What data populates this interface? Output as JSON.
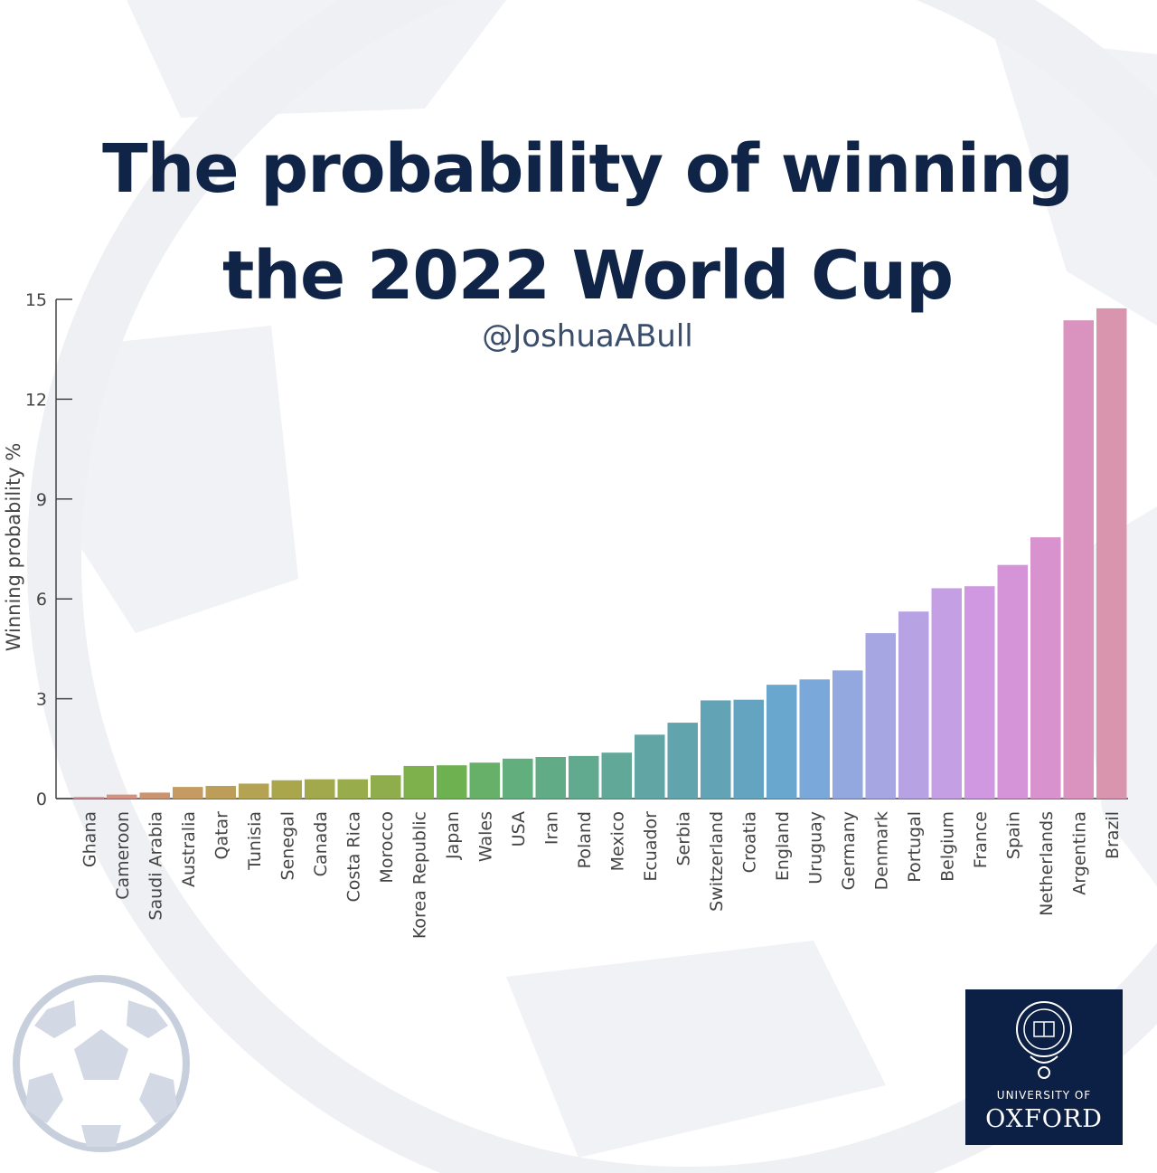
{
  "chart_data": {
    "type": "bar",
    "title": "The probability of winning the 2022 World Cup",
    "title_lines": [
      "The probability of winning",
      "the 2022 World Cup"
    ],
    "subtitle": "@JoshuaABull",
    "ylabel": "Winning probability %",
    "xlabel": "",
    "ylim": [
      0,
      15
    ],
    "yticks": [
      0,
      3,
      6,
      9,
      12,
      15
    ],
    "grid": false,
    "categories": [
      "Ghana",
      "Cameroon",
      "Saudi Arabia",
      "Australia",
      "Qatar",
      "Tunisia",
      "Senegal",
      "Canada",
      "Costa Rica",
      "Morocco",
      "Korea Republic",
      "Japan",
      "Wales",
      "USA",
      "Iran",
      "Poland",
      "Mexico",
      "Ecuador",
      "Serbia",
      "Switzerland",
      "Croatia",
      "England",
      "Uruguay",
      "Germany",
      "Denmark",
      "Portugal",
      "Belgium",
      "France",
      "Spain",
      "Netherlands",
      "Argentina",
      "Brazil"
    ],
    "values": [
      0.05,
      0.12,
      0.18,
      0.35,
      0.38,
      0.45,
      0.55,
      0.58,
      0.58,
      0.7,
      0.98,
      1.0,
      1.08,
      1.2,
      1.25,
      1.28,
      1.38,
      1.92,
      2.28,
      2.95,
      2.97,
      3.42,
      3.58,
      3.85,
      4.97,
      5.62,
      6.32,
      6.38,
      7.02,
      7.85,
      14.37,
      14.73
    ],
    "colors": [
      "#d98e96",
      "#d49080",
      "#ca9470",
      "#c59b62",
      "#bc9e58",
      "#b3a352",
      "#a9a64c",
      "#a2a94c",
      "#99ac4c",
      "#8fad4c",
      "#7eb04c",
      "#6eb150",
      "#66b069",
      "#62ae7c",
      "#61ac86",
      "#61aa8f",
      "#61a899",
      "#61a6a4",
      "#62a4ad",
      "#63a3b6",
      "#65a4c1",
      "#69a7cf",
      "#7ba8da",
      "#92a8df",
      "#a6a6e2",
      "#b7a3e3",
      "#c59fe3",
      "#d198e2",
      "#d593d8",
      "#d892cd",
      "#da92bf",
      "#d995ad"
    ]
  },
  "branding": {
    "university_of": "UNIVERSITY OF",
    "oxford": "OXFORD"
  }
}
